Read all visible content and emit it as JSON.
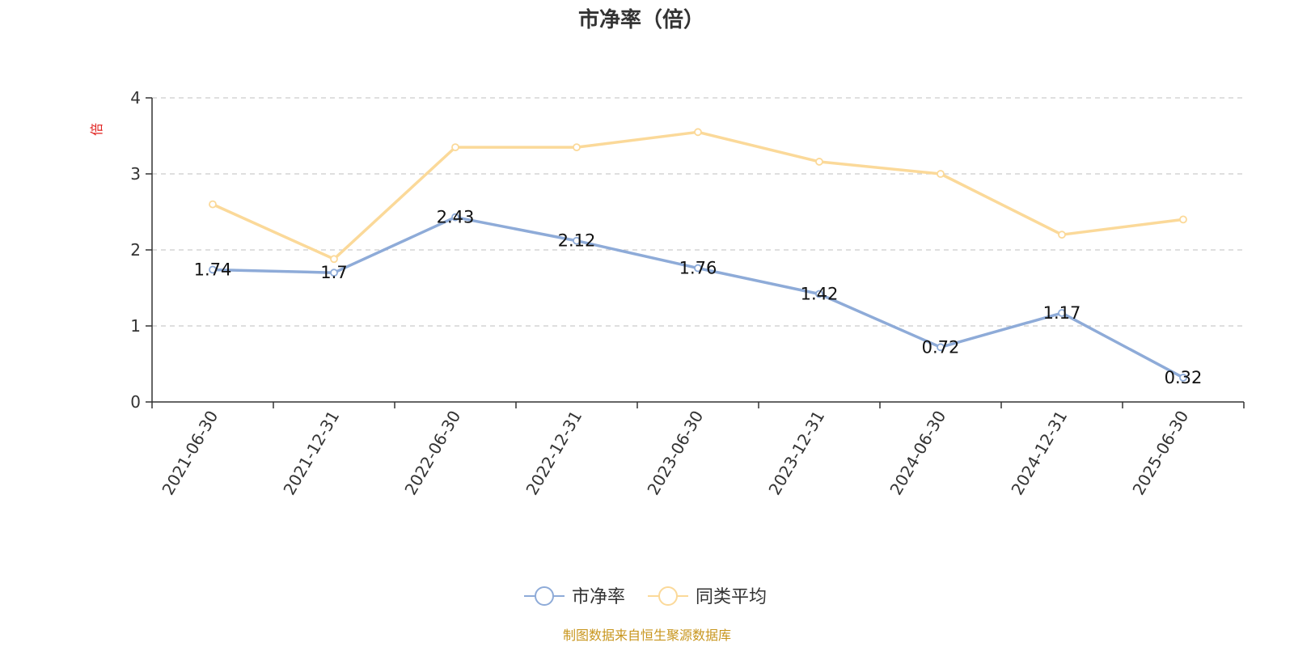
{
  "chart_data": {
    "type": "line",
    "title": "市净率（倍）",
    "ylabel": "倍",
    "xlabel": "",
    "categories": [
      "2021-06-30",
      "2021-12-31",
      "2022-06-30",
      "2022-12-31",
      "2023-06-30",
      "2023-12-31",
      "2024-06-30",
      "2024-12-31",
      "2025-06-30"
    ],
    "ylim": [
      0,
      4
    ],
    "yticks": [
      0,
      1,
      2,
      3,
      4
    ],
    "grid": true,
    "legend_position": "bottom-center",
    "series": [
      {
        "name": "市净率",
        "color": "#8eabd8",
        "values": [
          1.74,
          1.7,
          2.43,
          2.12,
          1.76,
          1.42,
          0.72,
          1.17,
          0.32
        ],
        "labels": [
          "1.74",
          "1.7",
          "2.43",
          "2.12",
          "1.76",
          "1.42",
          "0.72",
          "1.17",
          "0.32"
        ]
      },
      {
        "name": "同类平均",
        "color": "#fbd999",
        "values": [
          2.6,
          1.88,
          3.35,
          3.35,
          3.55,
          3.16,
          3.0,
          2.2,
          2.4
        ]
      }
    ],
    "source": "制图数据来自恒生聚源数据库"
  }
}
